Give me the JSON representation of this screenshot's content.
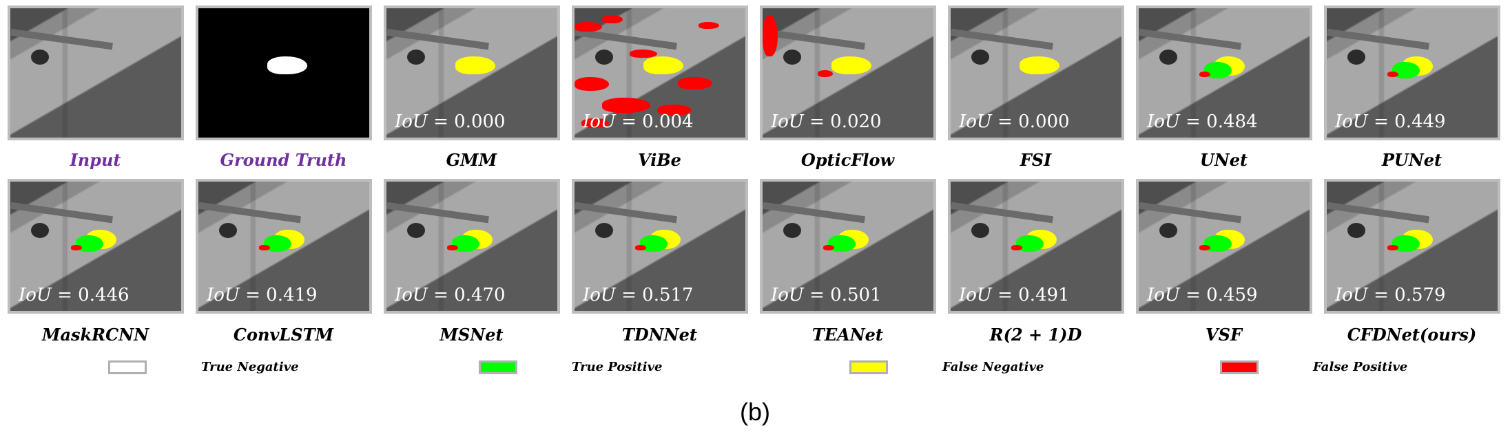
{
  "panels": [
    {
      "label": "Input",
      "purple": true,
      "mask": "none",
      "iou": null
    },
    {
      "label": "Ground Truth",
      "purple": true,
      "mask": "gt",
      "iou": null
    },
    {
      "label": "GMM",
      "mask": "fn",
      "iou": "0.000"
    },
    {
      "label": "ViBe",
      "mask": "vibe",
      "iou": "0.004"
    },
    {
      "label": "OpticFlow",
      "mask": "optic",
      "iou": "0.020"
    },
    {
      "label": "FSI",
      "mask": "fn",
      "iou": "0.000"
    },
    {
      "label": "UNet",
      "mask": "mix",
      "iou": "0.484"
    },
    {
      "label": "PUNet",
      "mask": "mix",
      "iou": "0.449"
    },
    {
      "label": "MaskRCNN",
      "mask": "mix",
      "iou": "0.446"
    },
    {
      "label": "ConvLSTM",
      "mask": "mix",
      "iou": "0.419"
    },
    {
      "label": "MSNet",
      "mask": "mix",
      "iou": "0.470"
    },
    {
      "label": "TDNNet",
      "mask": "mix",
      "iou": "0.517"
    },
    {
      "label": "TEANet",
      "mask": "mix",
      "iou": "0.501"
    },
    {
      "label": "R(2 + 1)D",
      "mask": "mix",
      "iou": "0.491"
    },
    {
      "label": "VSF",
      "mask": "mix",
      "iou": "0.459"
    },
    {
      "label": "CFDNet(ours)",
      "mask": "mix",
      "iou": "0.579"
    }
  ],
  "iou_prefix": "IoU",
  "iou_eq": " = ",
  "legend": [
    {
      "label": "True Negative",
      "color": "#ffffff"
    },
    {
      "label": "True Positive",
      "color": "#00ff00"
    },
    {
      "label": "False Negative",
      "color": "#ffff00"
    },
    {
      "label": "False Positive",
      "color": "#ff0000"
    }
  ],
  "caption": "(b)"
}
